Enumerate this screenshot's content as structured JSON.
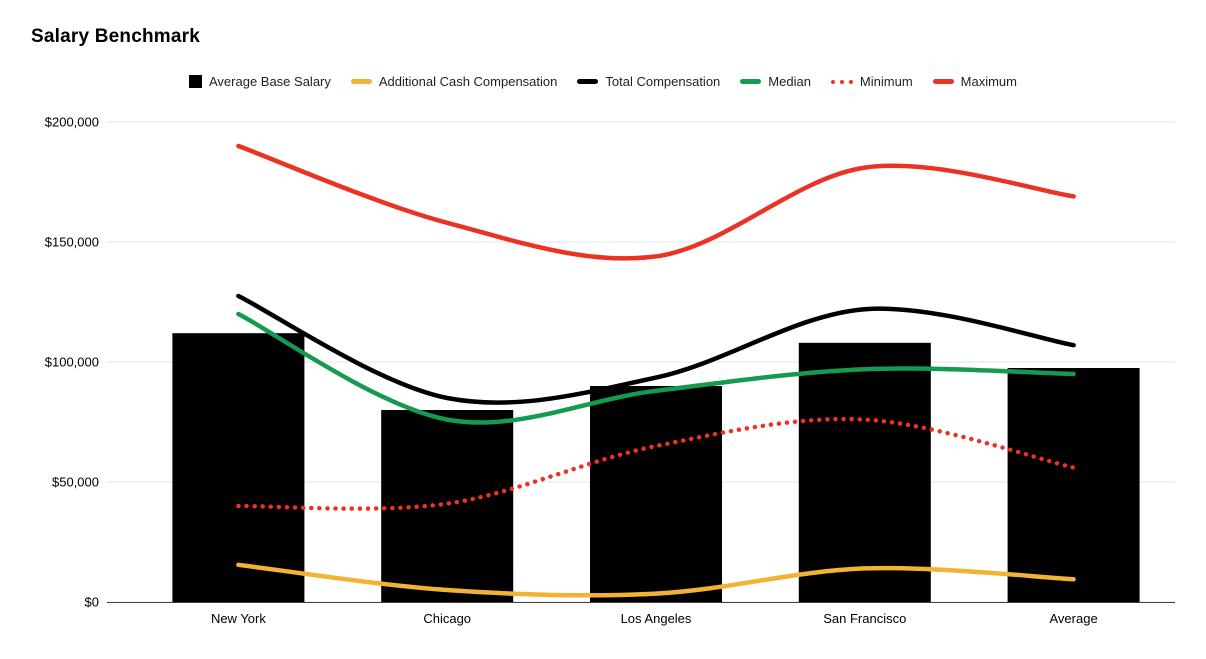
{
  "title": "Salary Benchmark",
  "legend": [
    {
      "label": "Average Base Salary",
      "marker": "square",
      "color": "#000000"
    },
    {
      "label": "Additional Cash Compensation",
      "marker": "line",
      "color": "#F2B234"
    },
    {
      "label": "Total Compensation",
      "marker": "line",
      "color": "#000000"
    },
    {
      "label": "Median",
      "marker": "line",
      "color": "#149A51"
    },
    {
      "label": "Minimum",
      "marker": "dotted-line",
      "color": "#EA3323"
    },
    {
      "label": "Maximum",
      "marker": "line",
      "color": "#EA3323"
    }
  ],
  "colors": {
    "bar": "#000000",
    "additional_cash": "#F2B234",
    "total_comp": "#000000",
    "median": "#149A51",
    "minimum": "#EA3323",
    "maximum": "#EA3323",
    "gridline": "#e6e6e6",
    "axis_line": "#424242",
    "label_text": "#000000"
  },
  "chart_data": {
    "type": "bar",
    "subtype": "combo-bar-line",
    "title": "Salary Benchmark",
    "xlabel": "",
    "ylabel": "",
    "grid": true,
    "smooth_lines": true,
    "legend_position": "top",
    "categories": [
      "New York",
      "Chicago",
      "Los Angeles",
      "San Francisco",
      "Average"
    ],
    "y_axis": {
      "min": 0,
      "max": 200000,
      "ticks": [
        0,
        50000,
        100000,
        150000,
        200000
      ],
      "tick_labels": [
        "$0",
        "$50,000",
        "$100,000",
        "$150,000",
        "$200,000"
      ]
    },
    "series": [
      {
        "name": "Average Base Salary",
        "type": "bar",
        "color": "#000000",
        "values": [
          112000,
          80000,
          90000,
          108000,
          97500
        ]
      },
      {
        "name": "Additional Cash Compensation",
        "type": "line",
        "style": "solid",
        "color": "#F2B234",
        "values": [
          15500,
          5000,
          3500,
          14000,
          9500
        ]
      },
      {
        "name": "Total Compensation",
        "type": "line",
        "style": "solid",
        "color": "#000000",
        "values": [
          127500,
          85000,
          93500,
          122000,
          107000
        ]
      },
      {
        "name": "Median",
        "type": "line",
        "style": "solid",
        "color": "#149A51",
        "values": [
          120000,
          76000,
          88000,
          97000,
          95000
        ]
      },
      {
        "name": "Minimum",
        "type": "line",
        "style": "dotted",
        "color": "#EA3323",
        "values": [
          40000,
          41000,
          65000,
          76000,
          56000
        ]
      },
      {
        "name": "Maximum",
        "type": "line",
        "style": "solid",
        "color": "#EA3323",
        "values": [
          190000,
          158000,
          144000,
          181000,
          169000
        ]
      }
    ]
  }
}
